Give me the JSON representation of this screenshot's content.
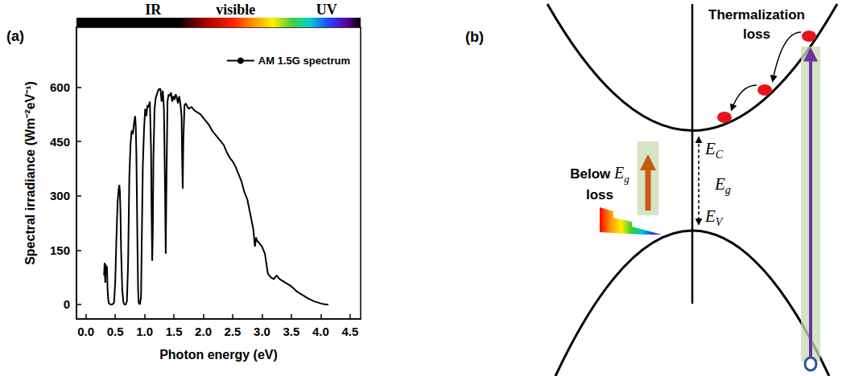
{
  "chart_data": {
    "type": "line",
    "panel_label": "(a)",
    "annotations": [
      "IR",
      "visible",
      "UV"
    ],
    "x_label": "Photon energy (eV)",
    "y_label": "Spectral irradiance (Wm⁻²eV⁻¹)",
    "x": [
      0.31,
      0.32,
      0.33,
      0.34,
      0.35,
      0.36,
      0.37,
      0.38,
      0.39,
      0.4,
      0.42,
      0.45,
      0.48,
      0.5,
      0.52,
      0.54,
      0.56,
      0.57,
      0.58,
      0.59,
      0.6,
      0.62,
      0.64,
      0.66,
      0.68,
      0.7,
      0.72,
      0.74,
      0.76,
      0.78,
      0.8,
      0.82,
      0.84,
      0.85,
      0.86,
      0.88,
      0.89,
      0.9,
      0.92,
      0.94,
      0.95,
      0.97,
      0.99,
      1.01,
      1.03,
      1.05,
      1.07,
      1.09,
      1.11,
      1.12,
      1.13,
      1.14,
      1.15,
      1.17,
      1.19,
      1.21,
      1.23,
      1.25,
      1.27,
      1.29,
      1.31,
      1.33,
      1.35,
      1.36,
      1.37,
      1.39,
      1.41,
      1.43,
      1.45,
      1.47,
      1.49,
      1.51,
      1.53,
      1.55,
      1.57,
      1.59,
      1.61,
      1.63,
      1.64,
      1.65,
      1.66,
      1.68,
      1.7,
      1.75,
      1.8,
      1.85,
      1.9,
      1.95,
      2.0,
      2.05,
      2.1,
      2.15,
      2.2,
      2.25,
      2.3,
      2.35,
      2.4,
      2.45,
      2.5,
      2.55,
      2.6,
      2.65,
      2.7,
      2.75,
      2.8,
      2.85,
      2.88,
      2.9,
      2.92,
      2.95,
      3.0,
      3.05,
      3.1,
      3.15,
      3.2,
      3.25,
      3.3,
      3.35,
      3.4,
      3.5,
      3.6,
      3.7,
      3.8,
      3.9,
      4.0,
      4.05,
      4.1,
      4.13
    ],
    "series": [
      {
        "name": "AM 1.5G spectrum",
        "color": "#000000",
        "values": [
          80,
          115,
          60,
          110,
          85,
          105,
          40,
          15,
          5,
          2,
          0,
          0,
          5,
          60,
          180,
          280,
          320,
          330,
          310,
          250,
          150,
          40,
          5,
          0,
          0,
          10,
          120,
          350,
          440,
          480,
          470,
          500,
          520,
          490,
          420,
          150,
          40,
          5,
          0,
          20,
          150,
          380,
          480,
          540,
          520,
          550,
          545,
          560,
          430,
          250,
          120,
          200,
          400,
          540,
          570,
          580,
          590,
          595,
          595,
          560,
          590,
          540,
          300,
          140,
          300,
          560,
          580,
          575,
          585,
          560,
          575,
          565,
          580,
          570,
          555,
          575,
          555,
          520,
          400,
          320,
          450,
          550,
          555,
          540,
          545,
          535,
          530,
          525,
          515,
          505,
          495,
          480,
          470,
          460,
          450,
          440,
          420,
          405,
          395,
          380,
          360,
          340,
          310,
          290,
          250,
          210,
          160,
          185,
          175,
          170,
          160,
          140,
          85,
          75,
          70,
          80,
          70,
          65,
          60,
          50,
          35,
          25,
          15,
          8,
          3,
          1,
          0,
          0
        ]
      }
    ],
    "xlim": [
      -0.16,
      4.68
    ],
    "ylim": [
      -40,
      765
    ],
    "xticks": [
      {
        "value": 0,
        "label": "0.0"
      },
      0.5,
      {
        "value": 1,
        "label": "1.0"
      },
      1.5,
      {
        "value": 2,
        "label": "2.0"
      },
      2.5,
      {
        "value": 3,
        "label": "3.0"
      },
      3.5,
      {
        "value": 4,
        "label": "4.0"
      },
      4.5
    ],
    "yticks": [
      0,
      150,
      300,
      450,
      600
    ],
    "legend": "upper right",
    "grid": false
  },
  "diagram": {
    "panel_label": "(b)",
    "thermalization_loss": "Thermalization loss",
    "below_gap_loss": {
      "before": "Below",
      "symbol": "E",
      "subscript": "g",
      "after": "loss"
    },
    "levels": {
      "conduction": {
        "symbol": "E",
        "subscript": "C"
      },
      "gap": {
        "symbol": "E",
        "subscript": "g"
      },
      "valence": {
        "symbol": "E",
        "subscript": "V"
      }
    }
  }
}
